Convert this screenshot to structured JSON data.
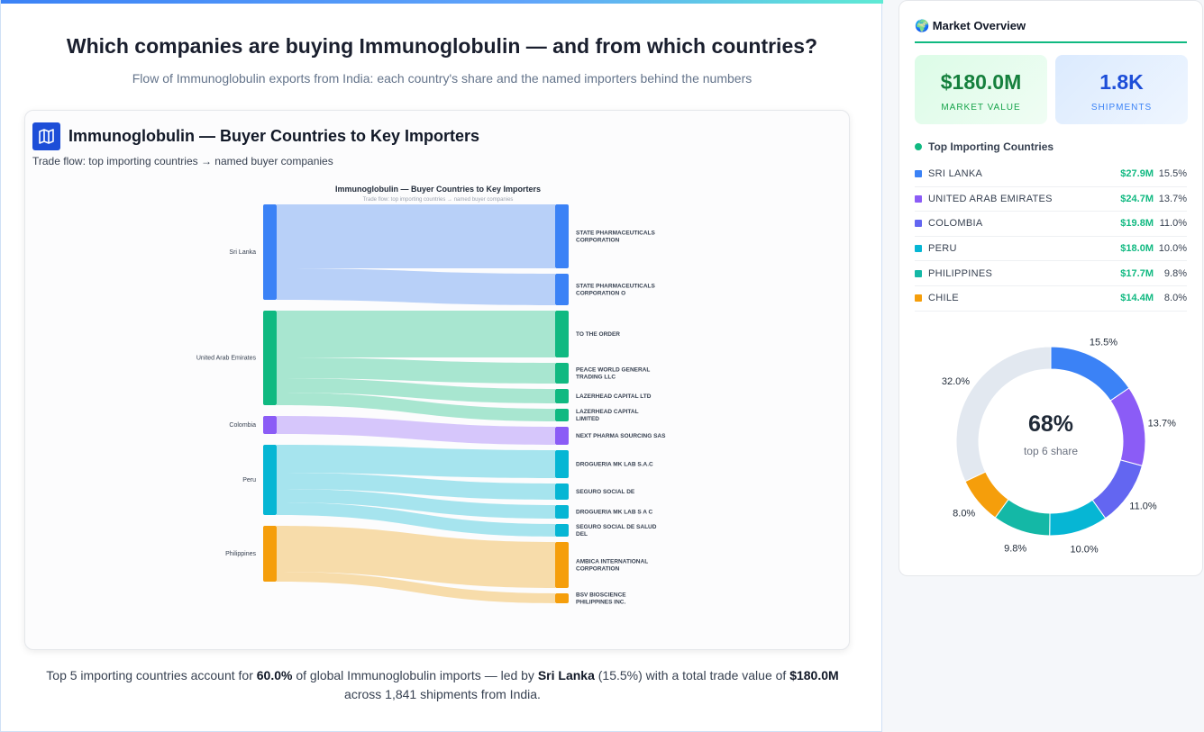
{
  "header": {
    "title": "Which companies are buying Immunoglobulin — and from which countries?",
    "subtitle": "Flow of Immunoglobulin exports from India: each country's share and the named importers behind the numbers"
  },
  "card": {
    "icon": "map-icon",
    "title": "Immunoglobulin — Buyer Countries to Key Importers",
    "subtitle": "Trade flow: top importing countries → named buyer companies"
  },
  "chart_data": {
    "type": "sankey",
    "title": "Immunoglobulin — Buyer Countries to Key Importers",
    "subtitle": "Trade flow: top importing countries → named buyer companies",
    "sources": [
      {
        "name": "Sri Lanka",
        "color": "#3b82f6",
        "link_color": "#b8d0f8"
      },
      {
        "name": "United Arab Emirates",
        "color": "#10b981",
        "link_color": "#a8e6d0"
      },
      {
        "name": "Colombia",
        "color": "#8b5cf6",
        "link_color": "#d6c6fb"
      },
      {
        "name": "Peru",
        "color": "#06b6d4",
        "link_color": "#a6e4ee"
      },
      {
        "name": "Philippines",
        "color": "#f59e0b",
        "link_color": "#f7dcaa"
      }
    ],
    "links": [
      {
        "source": 0,
        "target": "STATE PHARMACEUTICALS CORPORATION",
        "value": 71
      },
      {
        "source": 0,
        "target": "STATE PHARMACEUTICALS CORPORATION O",
        "value": 35
      },
      {
        "source": 1,
        "target": "TO THE ORDER",
        "value": 52
      },
      {
        "source": 1,
        "target": "PEACE WORLD GENERAL TRADING LLC",
        "value": 23
      },
      {
        "source": 1,
        "target": "LAZERHEAD CAPITAL LTD",
        "value": 16
      },
      {
        "source": 1,
        "target": "LAZERHEAD CAPITAL LIMITED",
        "value": 14
      },
      {
        "source": 2,
        "target": "NEXT PHARMA SOURCING SAS",
        "value": 20
      },
      {
        "source": 3,
        "target": "DROGUERIA MK LAB S.A.C",
        "value": 31
      },
      {
        "source": 3,
        "target": "SEGURO SOCIAL DE",
        "value": 18
      },
      {
        "source": 3,
        "target": "DROGUERIA MK LAB S A C",
        "value": 15
      },
      {
        "source": 3,
        "target": "SEGURO SOCIAL DE SALUD DEL",
        "value": 14
      },
      {
        "source": 4,
        "target": "AMBICA INTERNATIONAL CORPORATION",
        "value": 51
      },
      {
        "source": 4,
        "target": "BSV BIOSCIENCE PHILIPPINES INC.",
        "value": 11
      }
    ]
  },
  "footer": {
    "p1": "Top 5 importing countries account for ",
    "share": "60.0%",
    "p2": " of global Immunoglobulin imports — led by ",
    "leader": "Sri Lanka",
    "p3": " (15.5%) with a total trade value of ",
    "total": "$180.0M",
    "p4": " across 1,841 shipments from India."
  },
  "sidebar": {
    "title": "🌍 Market Overview",
    "market_value": "$180.0M",
    "market_value_label": "MARKET VALUE",
    "shipments": "1.8K",
    "shipments_label": "SHIPMENTS",
    "top_title": "Top Importing Countries",
    "countries": [
      {
        "name": "SRI LANKA",
        "value": "$27.9M",
        "pct": "15.5%",
        "share": 15.5,
        "color": "#3b82f6"
      },
      {
        "name": "UNITED ARAB EMIRATES",
        "value": "$24.7M",
        "pct": "13.7%",
        "share": 13.7,
        "color": "#8b5cf6"
      },
      {
        "name": "COLOMBIA",
        "value": "$19.8M",
        "pct": "11.0%",
        "share": 11.0,
        "color": "#6366f1"
      },
      {
        "name": "PERU",
        "value": "$18.0M",
        "pct": "10.0%",
        "share": 10.0,
        "color": "#06b6d4"
      },
      {
        "name": "PHILIPPINES",
        "value": "$17.7M",
        "pct": "9.8%",
        "share": 9.8,
        "color": "#14b8a6"
      },
      {
        "name": "CHILE",
        "value": "$14.4M",
        "pct": "8.0%",
        "share": 8.0,
        "color": "#f59e0b"
      }
    ],
    "other_share": 32.0,
    "other_label": "32.0%",
    "other_color": "#e2e8f0",
    "donut_center": "68%",
    "donut_center_label": "top 6 share"
  }
}
